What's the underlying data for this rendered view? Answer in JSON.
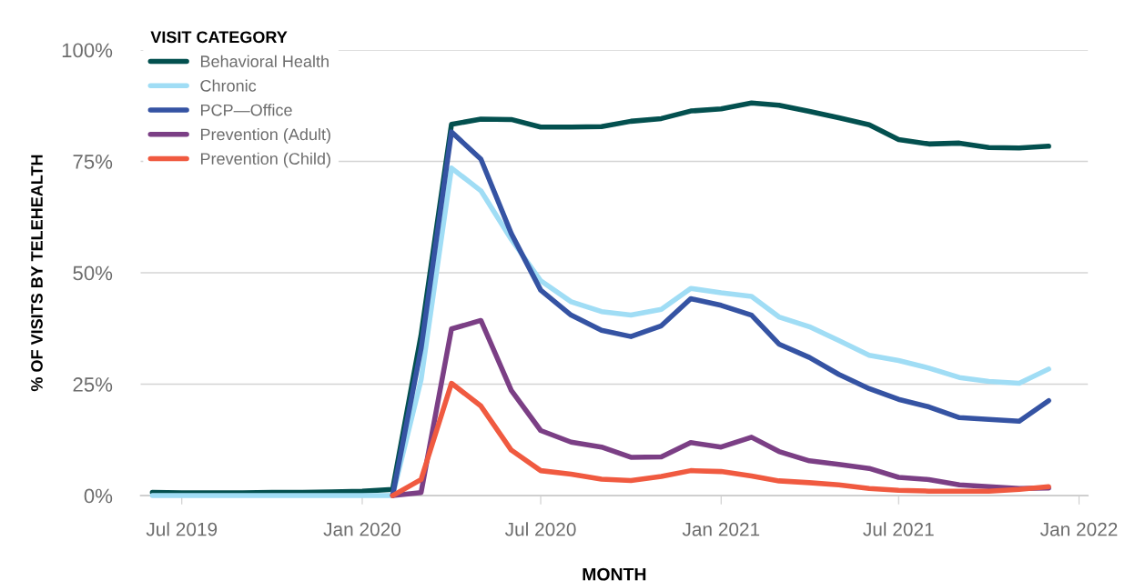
{
  "chart_data": {
    "type": "line",
    "xlabel": "MONTH",
    "ylabel": "% OF VISITS BY TELEHEALTH",
    "legend_title": "VISIT CATEGORY",
    "legend": "top left",
    "grid": "y",
    "marker": "none",
    "line_style": "solid",
    "x": [
      "2019-06",
      "2019-07",
      "2019-08",
      "2019-09",
      "2019-10",
      "2019-11",
      "2019-12",
      "2020-01",
      "2020-02",
      "2020-03",
      "2020-04",
      "2020-05",
      "2020-06",
      "2020-07",
      "2020-08",
      "2020-09",
      "2020-10",
      "2020-11",
      "2020-12",
      "2021-01",
      "2021-02",
      "2021-03",
      "2021-04",
      "2021-05",
      "2021-06",
      "2021-07",
      "2021-08",
      "2021-09",
      "2021-10",
      "2021-11",
      "2021-12"
    ],
    "xlim": [
      "2019-05-20",
      "2022-01-10"
    ],
    "xticks": [
      {
        "value": "2019-07",
        "label": "Jul 2019"
      },
      {
        "value": "2020-01",
        "label": "Jan 2020"
      },
      {
        "value": "2020-07",
        "label": "Jul 2020"
      },
      {
        "value": "2021-01",
        "label": "Jan 2021"
      },
      {
        "value": "2021-07",
        "label": "Jul 2021"
      },
      {
        "value": "2022-01",
        "label": "Jan 2022"
      }
    ],
    "ylim": [
      0,
      100
    ],
    "yticks": [
      {
        "value": 0,
        "label": "0%"
      },
      {
        "value": 25,
        "label": "25%"
      },
      {
        "value": 50,
        "label": "50%"
      },
      {
        "value": 75,
        "label": "75%"
      },
      {
        "value": 100,
        "label": "100%"
      }
    ],
    "series": [
      {
        "name": "Behavioral Health",
        "color": "#03504f",
        "values": [
          0.7,
          0.6,
          0.6,
          0.6,
          0.7,
          0.7,
          0.8,
          1.0,
          1.4,
          36,
          83.3,
          84.5,
          84.4,
          82.7,
          82.7,
          82.8,
          84.0,
          84.6,
          86.3,
          86.8,
          88.1,
          87.6,
          86.2,
          84.8,
          83.2,
          79.9,
          78.9,
          79.1,
          78.1,
          78.0,
          78.4
        ]
      },
      {
        "name": "Chronic",
        "color": "#a0ddf5",
        "values": [
          0,
          0,
          0,
          0,
          0,
          0,
          0,
          0,
          0,
          26,
          73.5,
          68.4,
          57.5,
          48.2,
          43.5,
          41.3,
          40.5,
          41.8,
          46.5,
          45.5,
          44.7,
          40.1,
          37.9,
          34.8,
          31.5,
          30.3,
          28.6,
          26.5,
          25.6,
          25.2,
          28.4
        ]
      },
      {
        "name": "PCP—Office",
        "color": "#3553a3",
        "values": [
          null,
          null,
          null,
          null,
          null,
          null,
          null,
          null,
          0,
          33,
          81.6,
          75.5,
          58.8,
          46.1,
          40.5,
          37.1,
          35.7,
          38.1,
          44.2,
          42.7,
          40.5,
          34.0,
          31.0,
          27.2,
          24.0,
          21.6,
          19.9,
          17.5,
          17.1,
          16.7,
          21.3
        ]
      },
      {
        "name": "Prevention (Adult)",
        "color": "#7b3f85",
        "values": [
          null,
          null,
          null,
          null,
          null,
          null,
          null,
          null,
          0,
          0.7,
          37.4,
          39.3,
          23.6,
          14.6,
          12.0,
          10.9,
          8.6,
          8.7,
          11.9,
          10.9,
          13.1,
          9.9,
          7.8,
          7.0,
          6.1,
          4.1,
          3.6,
          2.4,
          2.0,
          1.6,
          1.7
        ]
      },
      {
        "name": "Prevention (Child)",
        "color": "#f05a40",
        "values": [
          null,
          null,
          null,
          null,
          null,
          null,
          null,
          null,
          0,
          3.6,
          25.2,
          20.1,
          10.2,
          5.6,
          4.8,
          3.7,
          3.4,
          4.3,
          5.6,
          5.4,
          4.4,
          3.3,
          2.9,
          2.4,
          1.6,
          1.2,
          1.0,
          1.0,
          1.0,
          1.4,
          2.0
        ]
      }
    ]
  }
}
